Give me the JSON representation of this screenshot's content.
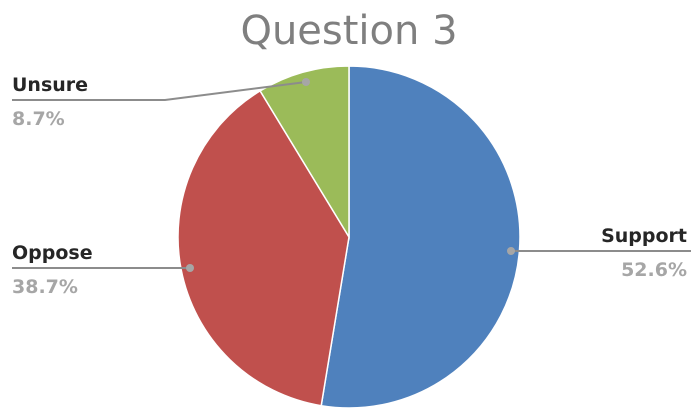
{
  "chart_data": {
    "type": "pie",
    "title": "Question 3",
    "slices": [
      {
        "label": "Support",
        "value": 52.6,
        "display": "52.6%",
        "color": "#4f81bd"
      },
      {
        "label": "Oppose",
        "value": 38.7,
        "display": "38.7%",
        "color": "#c0504d"
      },
      {
        "label": "Unsure",
        "value": 8.7,
        "display": "8.7%",
        "color": "#9bbb59"
      }
    ],
    "start_angle": "12 o'clock",
    "direction": "clockwise",
    "legend": "none",
    "data_labels": "outside with leader lines"
  }
}
